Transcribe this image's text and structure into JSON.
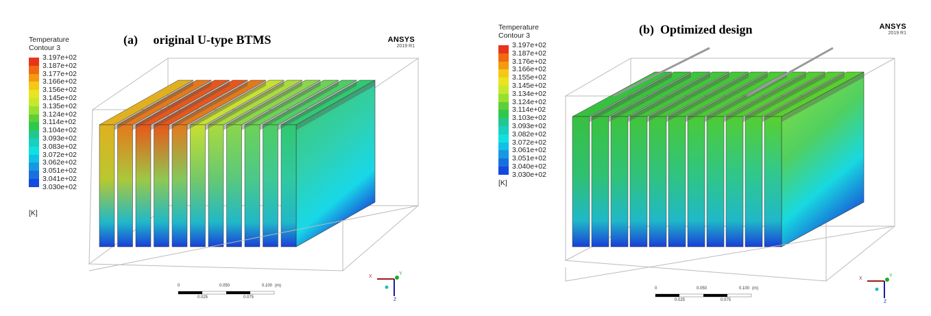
{
  "panels": [
    {
      "heading": "(a)     original U-type BTMS",
      "legend": {
        "title1": "Temperature",
        "title2": "Contour 3",
        "unit": "[K]",
        "values": [
          "3.197e+02",
          "3.187e+02",
          "3.177e+02",
          "3.166e+02",
          "3.156e+02",
          "3.145e+02",
          "3.135e+02",
          "3.124e+02",
          "3.114e+02",
          "3.104e+02",
          "3.093e+02",
          "3.083e+02",
          "3.072e+02",
          "3.062e+02",
          "3.051e+02",
          "3.041e+02",
          "3.030e+02"
        ]
      },
      "logo": {
        "brand": "ANSYS",
        "version": "2019 R1"
      },
      "scale": {
        "top": [
          "0",
          "0.050",
          "0.100",
          "(m)"
        ],
        "bottom": [
          "0.025",
          "0.075"
        ]
      },
      "axes": {
        "x": "X",
        "y": "Y",
        "z": "Z"
      }
    },
    {
      "heading": "(b)  Optimized design",
      "legend": {
        "title1": "Temperature",
        "title2": "Contour 3",
        "unit": "[K]",
        "values": [
          "3.197e+02",
          "3.187e+02",
          "3.176e+02",
          "3.166e+02",
          "3.155e+02",
          "3.145e+02",
          "3.134e+02",
          "3.124e+02",
          "3.114e+02",
          "3.103e+02",
          "3.093e+02",
          "3.082e+02",
          "3.072e+02",
          "3.061e+02",
          "3.051e+02",
          "3.040e+02",
          "3.030e+02"
        ]
      },
      "logo": {
        "brand": "ANSYS",
        "version": "2019 R1"
      },
      "scale": {
        "top": [
          "0",
          "0.050",
          "0.100",
          "(m)"
        ],
        "bottom": [
          "0.025",
          "0.075"
        ]
      },
      "axes": {
        "x": "X",
        "y": "Y",
        "z": "Z"
      }
    }
  ],
  "colormap": [
    "#e8341c",
    "#f06a10",
    "#f39a10",
    "#f5c814",
    "#e8e420",
    "#c6e82a",
    "#98e030",
    "#5cd038",
    "#30c84a",
    "#20c890",
    "#18d0c0",
    "#10e0e0",
    "#10c0e8",
    "#1898e0",
    "#1870e0",
    "#1448e0",
    "#1020e0"
  ]
}
